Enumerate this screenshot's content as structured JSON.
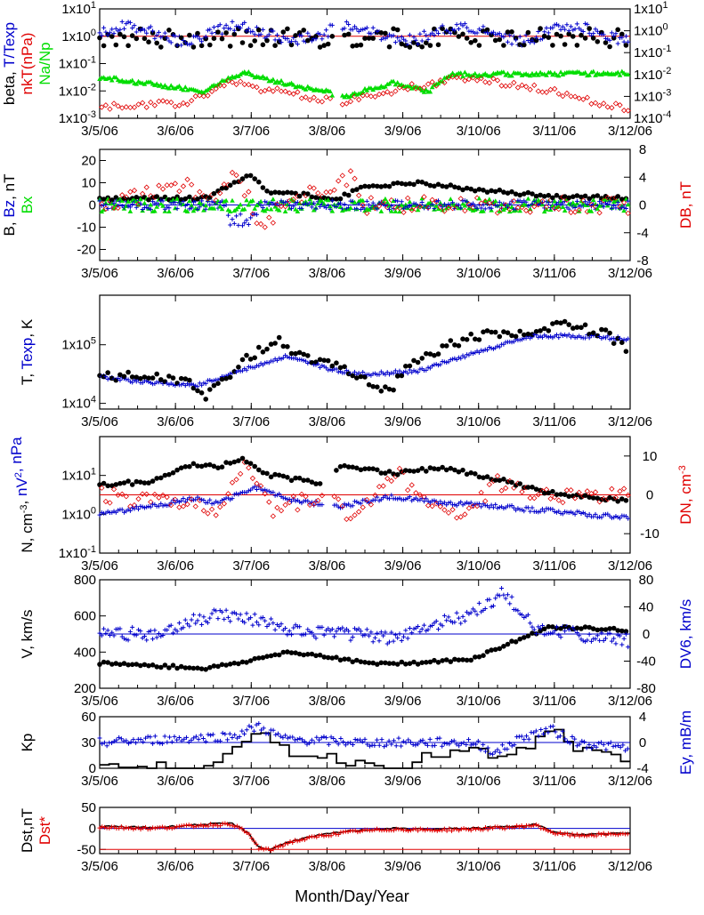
{
  "x_axis": {
    "title": "Month/Day/Year",
    "tick_labels": [
      "3/5/06",
      "3/6/06",
      "3/7/06",
      "3/8/06",
      "3/9/06",
      "3/10/06",
      "3/11/06",
      "3/12/06"
    ]
  },
  "colors": {
    "black": "#000000",
    "blue": "#0000cc",
    "red": "#e00000",
    "green": "#00dd00"
  },
  "chart_data": [
    {
      "type": "scatter",
      "panel": "beta-temperature-ratio-density",
      "left_label_parts": [
        {
          "text": "beta, ",
          "color": "#000000"
        },
        {
          "text": "T/Texp",
          "color": "#0000cc"
        }
      ],
      "left_label2_parts": [
        {
          "text": "nkT(nPa)",
          "color": "#e00000"
        }
      ],
      "left_label3_parts": [
        {
          "text": "Na/Np",
          "color": "#00dd00"
        }
      ],
      "yscale": "log",
      "ylim": [
        0.001,
        0.1
      ],
      "y_tick_labels": [
        "1x10-3",
        "1x10-2",
        "1x10-1",
        "1x100",
        "1x101"
      ],
      "y2scale": "log",
      "y2lim": [
        0.0001,
        10
      ],
      "y2_tick_labels": [
        "1x10-4",
        "1x10-3",
        "1x10-2",
        "1x10-1",
        "1x100",
        "1x101"
      ],
      "reference_line": {
        "y": 1,
        "color": "#e00000"
      },
      "series": []
    },
    {
      "type": "scatter",
      "panel": "magnetic-field",
      "left_label_parts": [
        {
          "text": "B, ",
          "color": "#000000"
        },
        {
          "text": "Bz",
          "color": "#0000cc"
        },
        {
          "text": ", nT",
          "color": "#000000"
        }
      ],
      "left_label2_parts": [
        {
          "text": "Bx",
          "color": "#00dd00"
        }
      ],
      "right_label_parts": [
        {
          "text": "DB, nT",
          "color": "#e00000"
        }
      ],
      "ylim": [
        -25,
        25
      ],
      "y_ticks": [
        -20,
        -10,
        0,
        10,
        20
      ],
      "y2lim": [
        -8,
        8
      ],
      "y2_ticks": [
        -8,
        -4,
        0,
        4,
        8
      ],
      "series": []
    },
    {
      "type": "scatter",
      "panel": "temperature",
      "left_label_parts": [
        {
          "text": "T, ",
          "color": "#000000"
        },
        {
          "text": "Texp",
          "color": "#0000cc"
        },
        {
          "text": ", K",
          "color": "#000000"
        }
      ],
      "yscale": "log",
      "ylim": [
        8000,
        700000
      ],
      "y_tick_labels": [
        "1x104",
        "1x105"
      ],
      "series": []
    },
    {
      "type": "scatter",
      "panel": "density-dynamic-pressure",
      "left_label_parts": [
        {
          "text": "N, cm-3, ",
          "color": "#000000"
        },
        {
          "text": "nV2, nPa",
          "color": "#0000cc"
        }
      ],
      "right_label_parts": [
        {
          "text": "DN, cm-3",
          "color": "#e00000"
        }
      ],
      "yscale": "log",
      "ylim": [
        0.1,
        100
      ],
      "y_tick_labels": [
        "1x10-1",
        "1x100",
        "1x101"
      ],
      "y2lim": [
        -15,
        15
      ],
      "y2_ticks": [
        -10,
        0,
        10
      ],
      "reference_line": {
        "y2": 0,
        "color": "#e00000"
      },
      "series": []
    },
    {
      "type": "scatter",
      "panel": "speed",
      "left_label_parts": [
        {
          "text": "V, km/s",
          "color": "#000000"
        }
      ],
      "right_label_parts": [
        {
          "text": "DV6, km/s",
          "color": "#0000cc"
        }
      ],
      "ylim": [
        200,
        800
      ],
      "y_ticks": [
        200,
        400,
        600,
        800
      ],
      "y2lim": [
        -80,
        80
      ],
      "y2_ticks": [
        -80,
        -40,
        0,
        40,
        80
      ],
      "reference_line": {
        "y2": 0,
        "color": "#0000cc"
      },
      "series": []
    },
    {
      "type": "line",
      "panel": "kp-ey",
      "left_label_parts": [
        {
          "text": "Kp",
          "color": "#000000"
        }
      ],
      "right_label_parts": [
        {
          "text": "Ey, mB/m",
          "color": "#0000cc"
        }
      ],
      "ylim": [
        0,
        60
      ],
      "y_ticks": [
        0,
        30,
        60
      ],
      "y2lim": [
        -4,
        4
      ],
      "y2_ticks": [
        -4,
        0,
        4
      ],
      "reference_line": {
        "y": 30,
        "color": "#0000cc"
      },
      "series": []
    },
    {
      "type": "line",
      "panel": "dst",
      "left_label_parts": [
        {
          "text": "Dst,nT",
          "color": "#000000"
        }
      ],
      "left_label2_parts": [
        {
          "text": "Dst*",
          "color": "#e00000"
        }
      ],
      "ylim": [
        -60,
        50
      ],
      "y_ticks": [
        -50,
        0,
        50
      ],
      "reference_lines": [
        {
          "y": 0,
          "color": "#0000cc"
        },
        {
          "y": -50,
          "color": "#e00000"
        }
      ],
      "series": []
    }
  ]
}
